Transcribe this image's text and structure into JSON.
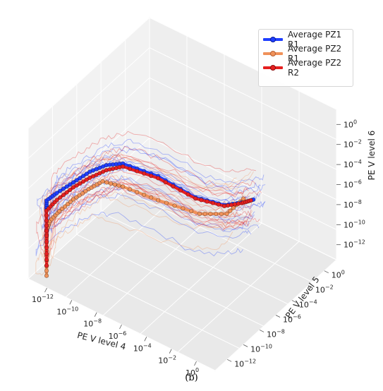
{
  "chart_data": {
    "type": "line",
    "projection": "3d",
    "xlabel": "PE V level 4",
    "ylabel": "PE V level 5",
    "zlabel": "PE V level 6",
    "log_axes": true,
    "x_ticks": [
      "10⁻¹²",
      "10⁻¹⁰",
      "10⁻⁸",
      "10⁻⁶",
      "10⁻⁴",
      "10⁻²",
      "10⁰"
    ],
    "y_ticks": [
      "10⁻¹²",
      "10⁻¹⁰",
      "10⁻⁸",
      "10⁻⁶",
      "10⁻⁴",
      "10⁻²",
      "10⁰"
    ],
    "z_ticks": [
      "10⁻¹²",
      "10⁻¹⁰",
      "10⁻⁸",
      "10⁻⁶",
      "10⁻⁴",
      "10⁻²",
      "10⁰"
    ],
    "x_exp": [
      -12,
      -10,
      -8,
      -6,
      -4,
      -2,
      0
    ],
    "y_exp": [
      -12,
      -10,
      -8,
      -6,
      -4,
      -2,
      0
    ],
    "z_exp": [
      -12,
      -10,
      -8,
      -6,
      -4,
      -2,
      0
    ],
    "grid": true,
    "legend_position": "top-right",
    "series": [
      {
        "name": "Average PZ1 R1",
        "color": "#1f3fff",
        "x_log10": [
          -13,
          -13,
          -13,
          -12.5,
          -11.5,
          -10.5,
          -9.5,
          -8.5,
          -6,
          -3,
          -1,
          0.5,
          1.0
        ],
        "y_log10": [
          -12,
          -12,
          -12,
          -11.5,
          -11,
          -10.5,
          -10,
          -9.5,
          -9,
          -9,
          -8.5,
          -8.2,
          -8
        ],
        "z_log10": [
          -10,
          -7.5,
          -6.5,
          -5.8,
          -4.5,
          -3.2,
          -2.3,
          -1.9,
          -2.0,
          -2.3,
          -2.2,
          -1.2,
          -0.8
        ]
      },
      {
        "name": "Average PZ2 R1",
        "color": "#f0925a",
        "x_log10": [
          -13,
          -13,
          -13,
          -12.8,
          -12.3,
          -11.5,
          -10.6,
          -9.8,
          -8.5,
          -6,
          -3,
          -1,
          0.2
        ],
        "y_log10": [
          -12,
          -12,
          -12,
          -11.9,
          -11.5,
          -11,
          -10.5,
          -10,
          -9.5,
          -9,
          -8.5,
          -8.2,
          -8
        ],
        "z_log10": [
          -14,
          -11.5,
          -9.5,
          -8.5,
          -7.5,
          -6.2,
          -5.0,
          -4.1,
          -4.2,
          -4.4,
          -4.3,
          -3.3,
          -1.2
        ]
      },
      {
        "name": "Average PZ2 R2",
        "color": "#e62020",
        "x_log10": [
          -13,
          -13,
          -13,
          -12.5,
          -11.5,
          -10.5,
          -9.5,
          -8.5,
          -6,
          -3,
          -1,
          0.2,
          0.8
        ],
        "y_log10": [
          -12,
          -12,
          -12,
          -11.5,
          -11,
          -10.5,
          -10,
          -9.5,
          -9,
          -9,
          -8.5,
          -8.2,
          -8
        ],
        "z_log10": [
          -13,
          -10,
          -7.5,
          -6.5,
          -5.0,
          -3.8,
          -2.8,
          -2.2,
          -2.2,
          -2.4,
          -2.3,
          -1.5,
          -1.0
        ]
      }
    ],
    "caption": "(b)"
  }
}
